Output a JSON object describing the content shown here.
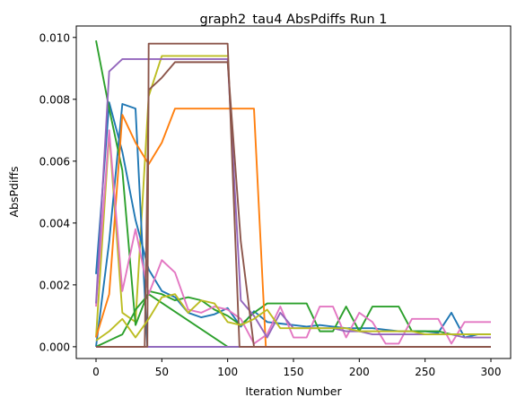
{
  "chart_data": {
    "type": "line",
    "title": "graph2_tau4 AbsPdiffs Run 1",
    "xlabel": "Iteration Number",
    "ylabel": "AbsPdiffs",
    "xlim": [
      -15,
      315
    ],
    "ylim": [
      -0.00038,
      0.01037
    ],
    "xticks": [
      0,
      50,
      100,
      150,
      200,
      250,
      300
    ],
    "xtick_labels": [
      "0",
      "50",
      "100",
      "150",
      "200",
      "250",
      "300"
    ],
    "yticks": [
      0.0,
      0.002,
      0.004,
      0.006,
      0.008,
      0.01
    ],
    "ytick_labels": [
      "0.000",
      "0.002",
      "0.004",
      "0.006",
      "0.008",
      "0.010"
    ],
    "grid": false,
    "legend": "none",
    "series": [
      {
        "color": "#bcbd22",
        "x": [
          0,
          10,
          20,
          30,
          40,
          50,
          60,
          70,
          80,
          90,
          100
        ],
        "y": [
          0.0003,
          0.0069,
          0.0011,
          0.0008,
          0.0081,
          0.0094,
          0.0094,
          0.0094,
          0.0094,
          0.0094,
          0.0094
        ]
      },
      {
        "color": "#1f77b4",
        "x": [
          0,
          10,
          20,
          30,
          40,
          50,
          60,
          70,
          80,
          90,
          100,
          110,
          120,
          130,
          140,
          150,
          160,
          170,
          180,
          190,
          200,
          210,
          220,
          230,
          240,
          250,
          260,
          270,
          280,
          290,
          300
        ],
        "y": [
          0.00235,
          0.0079,
          0.0063,
          0.0041,
          0.0025,
          0.0018,
          0.0016,
          0.0011,
          0.00095,
          0.00105,
          0.00125,
          0.00065,
          0.00115,
          0.0008,
          0.00075,
          0.0007,
          0.00065,
          0.0007,
          0.00065,
          0.0006,
          0.0006,
          0.0006,
          0.00055,
          0.0005,
          0.0005,
          0.0005,
          0.00045,
          0.0011,
          0.0003,
          0.0004,
          0.0004
        ]
      },
      {
        "color": "#1f77b4",
        "x": [
          0,
          10,
          20,
          30,
          39,
          40,
          100,
          150,
          200,
          250,
          300
        ],
        "y": [
          0.0,
          0.0034,
          0.00785,
          0.0077,
          0.0,
          0.0,
          0.0,
          0.0,
          0.0,
          0.0,
          0.0
        ]
      },
      {
        "color": "#2ca02c",
        "x": [
          0,
          10,
          20,
          30,
          40,
          50,
          60,
          70,
          80,
          90,
          100,
          110,
          120,
          130,
          140,
          150,
          160,
          170,
          180,
          190,
          200,
          210,
          220,
          230,
          240,
          250,
          260,
          270,
          280,
          290,
          300
        ],
        "y": [
          0.0099,
          0.0077,
          0.0057,
          0.0007,
          0.0018,
          0.0017,
          0.0015,
          0.0016,
          0.0015,
          0.0012,
          0.001,
          0.0007,
          0.0011,
          0.0014,
          0.0014,
          0.0014,
          0.0014,
          0.0005,
          0.0005,
          0.0013,
          0.0005,
          0.0013,
          0.0013,
          0.0013,
          0.0005,
          0.0005,
          0.0005,
          0.0004,
          0.0004,
          0.0004,
          0.0004
        ]
      },
      {
        "color": "#2ca02c",
        "x": [
          0,
          20,
          29,
          30,
          40,
          100,
          150,
          200,
          250,
          300
        ],
        "y": [
          0.0,
          0.0004,
          0.0011,
          0.0012,
          0.0017,
          0.0,
          0.0,
          0.0,
          0.0,
          0.0
        ]
      },
      {
        "color": "#ff7f0e",
        "x": [
          0,
          10,
          20,
          30,
          40,
          50,
          60,
          70,
          80,
          90,
          100,
          110,
          120,
          129,
          130,
          140,
          150,
          200,
          250,
          300
        ],
        "y": [
          0.0003,
          0.0017,
          0.0075,
          0.0066,
          0.0059,
          0.0066,
          0.0077,
          0.0077,
          0.0077,
          0.0077,
          0.0077,
          0.0077,
          0.0077,
          0.0,
          0.0,
          0.0,
          0.0,
          0.0,
          0.0,
          0.0
        ]
      },
      {
        "color": "#e377c2",
        "x": [
          0,
          10,
          20,
          30,
          40,
          50,
          60,
          70,
          80,
          90,
          100,
          110,
          120,
          130,
          140,
          150,
          160,
          170,
          180,
          190,
          200,
          210,
          220,
          230,
          240,
          250,
          260,
          270,
          280,
          290,
          300
        ],
        "y": [
          0.0013,
          0.007,
          0.0018,
          0.0038,
          0.0017,
          0.0028,
          0.0024,
          0.0012,
          0.0011,
          0.0013,
          0.0012,
          0.0009,
          0.0001,
          0.0004,
          0.0013,
          0.0003,
          0.0003,
          0.0013,
          0.0013,
          0.0003,
          0.0011,
          0.0008,
          0.0001,
          0.0001,
          0.0009,
          0.0009,
          0.0009,
          0.0001,
          0.0008,
          0.0008,
          0.0008
        ]
      },
      {
        "color": "#9467bd",
        "x": [
          0,
          10,
          20,
          30,
          40,
          50,
          60,
          70,
          80,
          90,
          100,
          110,
          120,
          130,
          140,
          150,
          160,
          170,
          180,
          190,
          200,
          210,
          220,
          230,
          240,
          250,
          260,
          270,
          280,
          290,
          300
        ],
        "y": [
          0.0014,
          0.0089,
          0.0093,
          0.0093,
          0.0093,
          0.0093,
          0.0093,
          0.0093,
          0.0093,
          0.0093,
          0.0093,
          0.0015,
          0.001,
          0.0003,
          0.0011,
          0.0006,
          0.0006,
          0.0006,
          0.0006,
          0.0005,
          0.0005,
          0.0004,
          0.0004,
          0.0004,
          0.0004,
          0.0004,
          0.0004,
          0.0004,
          0.0003,
          0.0003,
          0.0003
        ]
      },
      {
        "color": "#9467bd",
        "x": [
          0,
          300
        ],
        "y": [
          0.0,
          0.0
        ]
      },
      {
        "color": "#8c564b",
        "x": [
          0,
          10,
          20,
          30,
          37,
          40,
          50,
          60,
          70,
          80,
          90,
          100,
          110,
          120,
          150,
          200,
          250,
          300
        ],
        "y": [
          0.0,
          0.0,
          0.0,
          0.0,
          0.0,
          0.0083,
          0.0087,
          0.0092,
          0.0092,
          0.0092,
          0.0092,
          0.0092,
          0.0034,
          0.0,
          0.0,
          0.0,
          0.0,
          0.0
        ]
      },
      {
        "color": "#8c564b",
        "x": [
          0,
          10,
          20,
          30,
          39,
          40,
          50,
          60,
          70,
          80,
          90,
          100,
          109,
          110,
          150,
          200,
          250,
          300
        ],
        "y": [
          0.0,
          0.0,
          0.0,
          0.0,
          0.0,
          0.0098,
          0.0098,
          0.0098,
          0.0098,
          0.0098,
          0.0098,
          0.0098,
          0.0,
          0.0,
          0.0,
          0.0,
          0.0,
          0.0
        ]
      },
      {
        "color": "#bcbd22",
        "x": [
          0,
          10,
          20,
          30,
          40,
          50,
          60,
          70,
          80,
          90,
          100,
          110,
          120,
          130,
          140,
          150,
          160,
          170,
          180,
          190,
          200,
          210,
          220,
          230,
          240,
          250,
          260,
          270,
          280,
          290,
          300
        ],
        "y": [
          0.0002,
          0.0005,
          0.0009,
          0.0003,
          0.0009,
          0.0016,
          0.0017,
          0.0011,
          0.0015,
          0.0014,
          0.0008,
          0.0007,
          0.0009,
          0.0012,
          0.0006,
          0.0006,
          0.0006,
          0.0006,
          0.0006,
          0.0006,
          0.0005,
          0.0005,
          0.0005,
          0.0005,
          0.0005,
          0.0004,
          0.0004,
          0.0004,
          0.0004,
          0.0004,
          0.0004
        ]
      }
    ]
  }
}
